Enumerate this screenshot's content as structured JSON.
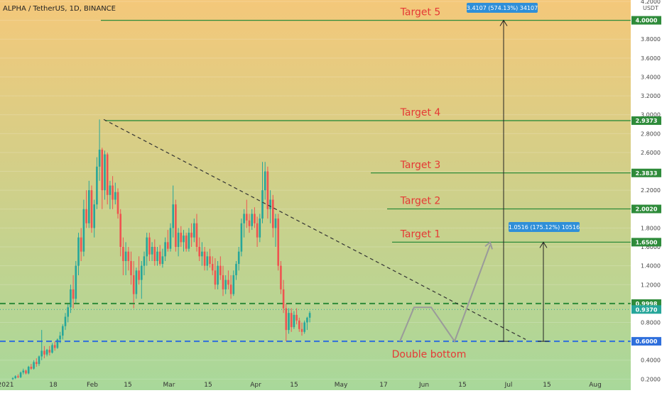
{
  "header": {
    "symbol_title": "ALPHA / TetherUS, 1D, BINANCE"
  },
  "axis": {
    "currency": "USDT"
  },
  "colors": {
    "bg_top": "#f4c87a",
    "bg_bottom": "#a8d89a",
    "up": "#26a69a",
    "down": "#ef5350",
    "level": "#2e8b3a",
    "target_text": "#e53935",
    "trendline": "#333333",
    "support": "#2f6fdc",
    "callout_bg": "#2f8fd8",
    "projection": "#9a9a9a"
  },
  "chart_data": {
    "type": "candlestick",
    "y_scale": "linear",
    "ylim": [
      0.12,
      4.2
    ],
    "y_ticks": [
      "0.2000",
      "0.4000",
      "0.6000",
      "0.8000",
      "1.0000",
      "1.2000",
      "1.4000",
      "1.6000",
      "1.8000",
      "2.0000",
      "2.2000",
      "2.4000",
      "2.6000",
      "2.8000",
      "3.0000",
      "3.2000",
      "3.4000",
      "3.6000",
      "3.8000",
      "4.0000",
      "4.2000"
    ],
    "x_ticks": [
      "2021",
      "18",
      "Feb",
      "15",
      "Mar",
      "15",
      "Apr",
      "15",
      "May",
      "17",
      "Jun",
      "15",
      "Jul",
      "15",
      "Aug"
    ],
    "candles": [
      [
        0.2,
        0.22,
        0.19,
        0.21
      ],
      [
        0.21,
        0.24,
        0.2,
        0.23
      ],
      [
        0.23,
        0.25,
        0.21,
        0.22
      ],
      [
        0.22,
        0.28,
        0.21,
        0.27
      ],
      [
        0.27,
        0.31,
        0.25,
        0.29
      ],
      [
        0.29,
        0.3,
        0.25,
        0.26
      ],
      [
        0.26,
        0.34,
        0.25,
        0.33
      ],
      [
        0.33,
        0.36,
        0.3,
        0.31
      ],
      [
        0.31,
        0.4,
        0.3,
        0.38
      ],
      [
        0.38,
        0.42,
        0.33,
        0.36
      ],
      [
        0.36,
        0.45,
        0.34,
        0.44
      ],
      [
        0.44,
        0.72,
        0.4,
        0.5
      ],
      [
        0.5,
        0.55,
        0.42,
        0.46
      ],
      [
        0.46,
        0.52,
        0.44,
        0.51
      ],
      [
        0.51,
        0.55,
        0.45,
        0.48
      ],
      [
        0.48,
        0.58,
        0.47,
        0.56
      ],
      [
        0.56,
        0.6,
        0.5,
        0.53
      ],
      [
        0.53,
        0.63,
        0.52,
        0.62
      ],
      [
        0.62,
        0.7,
        0.58,
        0.66
      ],
      [
        0.66,
        0.78,
        0.62,
        0.76
      ],
      [
        0.76,
        0.9,
        0.72,
        0.86
      ],
      [
        0.86,
        1.0,
        0.8,
        0.96
      ],
      [
        0.96,
        1.2,
        0.9,
        1.15
      ],
      [
        1.15,
        1.3,
        0.95,
        1.05
      ],
      [
        1.05,
        1.45,
        1.0,
        1.4
      ],
      [
        1.4,
        1.75,
        1.3,
        1.7
      ],
      [
        1.7,
        1.8,
        1.45,
        1.55
      ],
      [
        1.55,
        2.1,
        1.5,
        2.0
      ],
      [
        2.0,
        2.2,
        1.8,
        1.85
      ],
      [
        1.85,
        2.3,
        1.8,
        2.2
      ],
      [
        2.2,
        2.25,
        1.75,
        1.8
      ],
      [
        1.8,
        2.1,
        1.7,
        2.05
      ],
      [
        2.05,
        2.55,
        2.0,
        2.45
      ],
      [
        2.45,
        2.95,
        2.3,
        2.63
      ],
      [
        2.63,
        2.65,
        2.0,
        2.2
      ],
      [
        2.2,
        2.62,
        2.1,
        2.58
      ],
      [
        2.58,
        2.6,
        2.05,
        2.15
      ],
      [
        2.15,
        2.3,
        2.0,
        2.25
      ],
      [
        2.25,
        2.35,
        2.0,
        2.1
      ],
      [
        2.1,
        2.28,
        2.05,
        2.18
      ],
      [
        2.18,
        2.22,
        1.9,
        1.95
      ],
      [
        1.95,
        2.0,
        1.5,
        1.6
      ],
      [
        1.6,
        1.7,
        1.3,
        1.45
      ],
      [
        1.45,
        1.65,
        1.3,
        1.55
      ],
      [
        1.55,
        1.6,
        1.35,
        1.45
      ],
      [
        1.45,
        1.55,
        1.2,
        1.3
      ],
      [
        1.3,
        1.45,
        0.95,
        1.1
      ],
      [
        1.1,
        1.38,
        1.05,
        1.35
      ],
      [
        1.35,
        1.5,
        1.2,
        1.25
      ],
      [
        1.25,
        1.45,
        1.05,
        1.4
      ],
      [
        1.4,
        1.55,
        1.3,
        1.5
      ],
      [
        1.5,
        1.75,
        1.4,
        1.7
      ],
      [
        1.7,
        1.75,
        1.45,
        1.52
      ],
      [
        1.52,
        1.65,
        1.45,
        1.6
      ],
      [
        1.6,
        1.68,
        1.4,
        1.45
      ],
      [
        1.45,
        1.6,
        1.4,
        1.55
      ],
      [
        1.55,
        1.62,
        1.4,
        1.42
      ],
      [
        1.42,
        1.58,
        1.38,
        1.5
      ],
      [
        1.5,
        1.7,
        1.45,
        1.65
      ],
      [
        1.65,
        1.78,
        1.55,
        1.58
      ],
      [
        1.58,
        1.85,
        1.55,
        1.8
      ],
      [
        1.8,
        2.25,
        1.7,
        2.05
      ],
      [
        2.05,
        2.1,
        1.55,
        1.6
      ],
      [
        1.6,
        1.8,
        1.5,
        1.75
      ],
      [
        1.75,
        1.82,
        1.6,
        1.65
      ],
      [
        1.65,
        1.78,
        1.55,
        1.72
      ],
      [
        1.72,
        1.75,
        1.55,
        1.58
      ],
      [
        1.58,
        1.8,
        1.55,
        1.75
      ],
      [
        1.75,
        1.85,
        1.6,
        1.7
      ],
      [
        1.7,
        1.9,
        1.65,
        1.85
      ],
      [
        1.85,
        1.95,
        1.55,
        1.6
      ],
      [
        1.6,
        1.7,
        1.45,
        1.5
      ],
      [
        1.5,
        1.65,
        1.4,
        1.55
      ],
      [
        1.55,
        1.6,
        1.35,
        1.4
      ],
      [
        1.4,
        1.55,
        1.35,
        1.5
      ],
      [
        1.5,
        1.58,
        1.38,
        1.42
      ],
      [
        1.42,
        1.5,
        1.3,
        1.35
      ],
      [
        1.35,
        1.48,
        1.15,
        1.2
      ],
      [
        1.2,
        1.45,
        1.15,
        1.4
      ],
      [
        1.4,
        1.5,
        1.25,
        1.3
      ],
      [
        1.3,
        1.4,
        1.08,
        1.15
      ],
      [
        1.15,
        1.3,
        1.1,
        1.25
      ],
      [
        1.25,
        1.35,
        1.15,
        1.2
      ],
      [
        1.2,
        1.3,
        1.05,
        1.1
      ],
      [
        1.1,
        1.35,
        1.08,
        1.3
      ],
      [
        1.3,
        1.45,
        1.25,
        1.42
      ],
      [
        1.42,
        1.6,
        1.35,
        1.55
      ],
      [
        1.55,
        1.9,
        1.5,
        1.85
      ],
      [
        1.85,
        2.0,
        1.7,
        1.95
      ],
      [
        1.95,
        2.1,
        1.8,
        1.88
      ],
      [
        1.88,
        1.95,
        1.75,
        1.82
      ],
      [
        1.82,
        2.0,
        1.78,
        1.95
      ],
      [
        1.95,
        2.02,
        1.8,
        1.85
      ],
      [
        1.85,
        1.92,
        1.6,
        1.7
      ],
      [
        1.7,
        1.95,
        1.65,
        1.9
      ],
      [
        1.9,
        2.5,
        1.85,
        2.2
      ],
      [
        2.2,
        2.5,
        2.1,
        2.4
      ],
      [
        2.4,
        2.45,
        1.9,
        2.0
      ],
      [
        2.0,
        2.2,
        1.85,
        2.1
      ],
      [
        2.1,
        2.15,
        1.7,
        1.8
      ],
      [
        1.8,
        1.95,
        1.6,
        1.9
      ],
      [
        1.9,
        1.95,
        1.35,
        1.4
      ],
      [
        1.4,
        1.45,
        1.1,
        1.15
      ],
      [
        1.15,
        1.25,
        0.9,
        0.95
      ],
      [
        0.95,
        1.0,
        0.6,
        0.72
      ],
      [
        0.72,
        0.95,
        0.68,
        0.9
      ],
      [
        0.9,
        0.95,
        0.7,
        0.75
      ],
      [
        0.75,
        0.92,
        0.73,
        0.88
      ],
      [
        0.88,
        0.95,
        0.78,
        0.82
      ],
      [
        0.82,
        0.85,
        0.7,
        0.73
      ],
      [
        0.73,
        0.8,
        0.66,
        0.7
      ],
      [
        0.7,
        0.82,
        0.68,
        0.8
      ],
      [
        0.8,
        0.86,
        0.72,
        0.85
      ],
      [
        0.85,
        0.92,
        0.8,
        0.9
      ]
    ],
    "levels": [
      {
        "label": "Target 5",
        "value": 4.0
      },
      {
        "label": "Target 4",
        "value": 2.9373
      },
      {
        "label": "Target 3",
        "value": 2.3833
      },
      {
        "label": "Target 2",
        "value": 2.002
      },
      {
        "label": "Target 1",
        "value": 1.65
      }
    ],
    "dashed_levels": [
      {
        "value": 0.9998,
        "color": "#2e8b3a"
      },
      {
        "value": 0.6,
        "color": "#2f6fdc"
      }
    ],
    "tags": [
      {
        "text": "4.0000",
        "value": 4.0,
        "color": "#2e8b3a"
      },
      {
        "text": "2.9373",
        "value": 2.9373,
        "color": "#2e8b3a"
      },
      {
        "text": "2.3833",
        "value": 2.3833,
        "color": "#2e8b3a"
      },
      {
        "text": "2.0020",
        "value": 2.002,
        "color": "#2e8b3a"
      },
      {
        "text": "1.6500",
        "value": 1.65,
        "color": "#2e8b3a"
      },
      {
        "text": "0.9998",
        "value": 0.9998,
        "color": "#2e8b3a"
      },
      {
        "text": "0.9370",
        "value": 0.937,
        "color": "#26a69a"
      },
      {
        "text": "0.6000",
        "value": 0.6,
        "color": "#2f6fdc"
      }
    ],
    "callouts": [
      {
        "text": "3.4107 (574.13%) 34107"
      },
      {
        "text": "1.0516 (175.12%) 10516"
      }
    ],
    "annotation": "Double bottom"
  }
}
